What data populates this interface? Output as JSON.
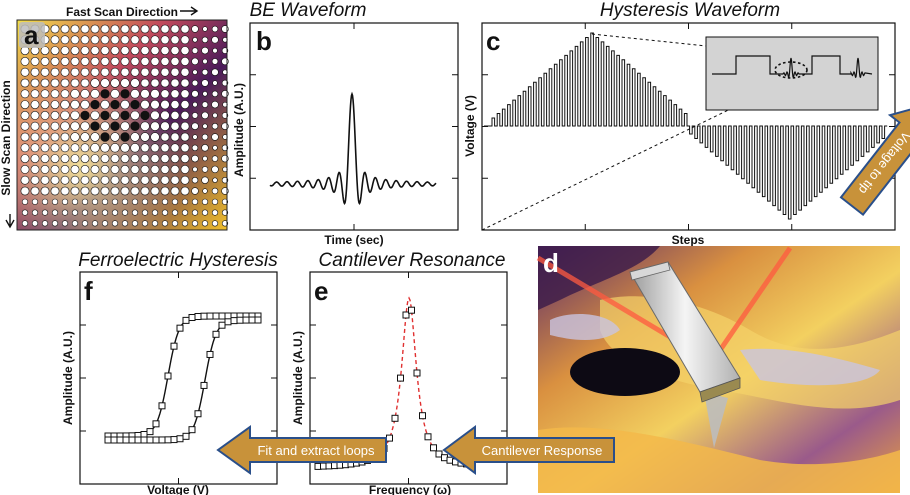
{
  "panels": {
    "a": {
      "letter": "a",
      "top_label": "Fast Scan Direction",
      "side_label": "Slow Scan Direction",
      "grid_rows": 19,
      "grid_cols": 21
    },
    "b": {
      "letter": "b",
      "title": "BE Waveform",
      "xlabel": "Time (sec)",
      "ylabel": "Amplitude (A.U.)"
    },
    "c": {
      "letter": "c",
      "title": "Hysteresis Waveform",
      "xlabel": "Steps",
      "ylabel": "Voltage (V)"
    },
    "d": {
      "letter": "d",
      "arrow_label": "Voltage to tip"
    },
    "e": {
      "letter": "e",
      "title": "Cantilever Resonance",
      "xlabel": "Frequency (ω)",
      "ylabel": "Amplitude (A.U.)"
    },
    "f": {
      "letter": "f",
      "title": "Ferroelectric Hysteresis",
      "xlabel": "Voltage (V)",
      "ylabel": "Amplitude (A.U.)"
    }
  },
  "arrows": {
    "fit_label": "Fit and extract loops",
    "response_label": "Cantilever Response"
  },
  "colors": {
    "arrow_fill": "#c8923a",
    "arrow_stroke": "#2a4f8a",
    "inset_bg": "#d3d3d3",
    "resonance_fit": "#e03030"
  }
}
